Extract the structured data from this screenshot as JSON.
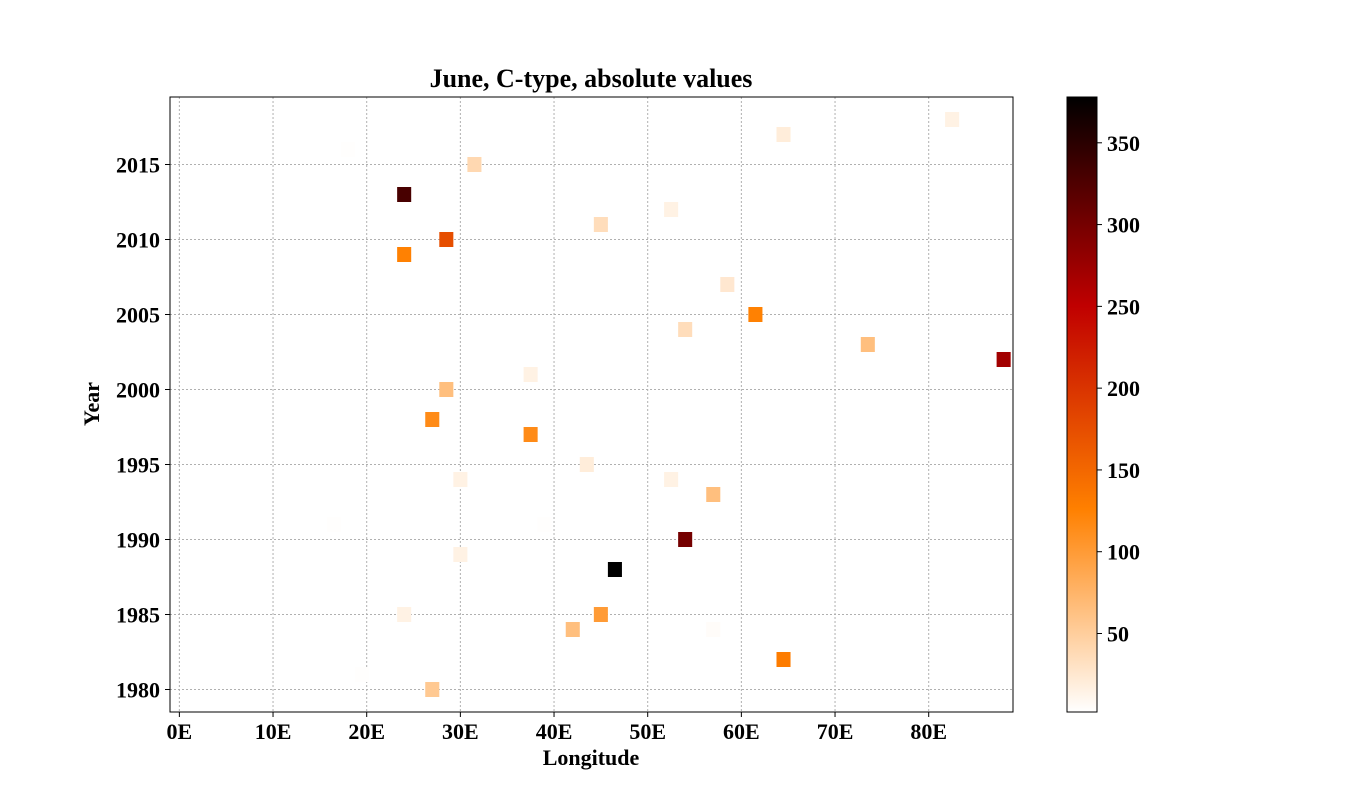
{
  "chart_data": {
    "type": "heatmap",
    "title": "June, C-type, absolute values",
    "xlabel": "Longitude",
    "ylabel": "Year",
    "xlim": [
      -1,
      89
    ],
    "ylim": [
      1978.5,
      2019.5
    ],
    "x_ticks": [
      0,
      10,
      20,
      30,
      40,
      50,
      60,
      70,
      80
    ],
    "x_tick_labels": [
      "0E",
      "10E",
      "20E",
      "30E",
      "40E",
      "50E",
      "60E",
      "70E",
      "80E"
    ],
    "y_ticks": [
      1980,
      1985,
      1990,
      1995,
      2000,
      2005,
      2010,
      2015
    ],
    "y_tick_labels": [
      "1980",
      "1985",
      "1990",
      "1995",
      "2000",
      "2005",
      "2010",
      "2015"
    ],
    "grid": true,
    "colormap": "gist_heat_r",
    "colorbar": {
      "range": [
        2,
        378
      ],
      "ticks": [
        50,
        100,
        150,
        200,
        250,
        300,
        350
      ],
      "tick_labels": [
        "50",
        "100",
        "150",
        "200",
        "250",
        "300",
        "350"
      ]
    },
    "cell_width": 1.5,
    "cell_height": 1,
    "points": [
      {
        "lon": 82.5,
        "year": 2018,
        "value": 15
      },
      {
        "lon": 64.5,
        "year": 2017,
        "value": 20
      },
      {
        "lon": 18,
        "year": 2016,
        "value": 3
      },
      {
        "lon": 31.5,
        "year": 2015,
        "value": 40
      },
      {
        "lon": 24,
        "year": 2013,
        "value": 330
      },
      {
        "lon": 52.5,
        "year": 2012,
        "value": 15
      },
      {
        "lon": 45,
        "year": 2011,
        "value": 35
      },
      {
        "lon": 28.5,
        "year": 2010,
        "value": 175
      },
      {
        "lon": 24,
        "year": 2009,
        "value": 125
      },
      {
        "lon": 58.5,
        "year": 2007,
        "value": 25
      },
      {
        "lon": 61.5,
        "year": 2005,
        "value": 125
      },
      {
        "lon": 54,
        "year": 2004,
        "value": 35
      },
      {
        "lon": 73.5,
        "year": 2003,
        "value": 65
      },
      {
        "lon": 88,
        "year": 2002,
        "value": 270
      },
      {
        "lon": 37.5,
        "year": 2001,
        "value": 15
      },
      {
        "lon": 28.5,
        "year": 2000,
        "value": 65
      },
      {
        "lon": 27,
        "year": 1998,
        "value": 115
      },
      {
        "lon": 37.5,
        "year": 1997,
        "value": 115
      },
      {
        "lon": 43.5,
        "year": 1995,
        "value": 20
      },
      {
        "lon": 30,
        "year": 1994,
        "value": 15
      },
      {
        "lon": 52.5,
        "year": 1994,
        "value": 15
      },
      {
        "lon": 57,
        "year": 1993,
        "value": 65
      },
      {
        "lon": 16.5,
        "year": 1991,
        "value": 3
      },
      {
        "lon": 39,
        "year": 1991,
        "value": 3
      },
      {
        "lon": 54,
        "year": 1990,
        "value": 300
      },
      {
        "lon": 30,
        "year": 1989,
        "value": 15
      },
      {
        "lon": 46.5,
        "year": 1988,
        "value": 378
      },
      {
        "lon": 24,
        "year": 1985,
        "value": 15
      },
      {
        "lon": 45,
        "year": 1985,
        "value": 100
      },
      {
        "lon": 42,
        "year": 1984,
        "value": 65
      },
      {
        "lon": 57,
        "year": 1984,
        "value": 5
      },
      {
        "lon": 64.5,
        "year": 1982,
        "value": 130
      },
      {
        "lon": 19.5,
        "year": 1981,
        "value": 3
      },
      {
        "lon": 27,
        "year": 1980,
        "value": 55
      }
    ]
  }
}
